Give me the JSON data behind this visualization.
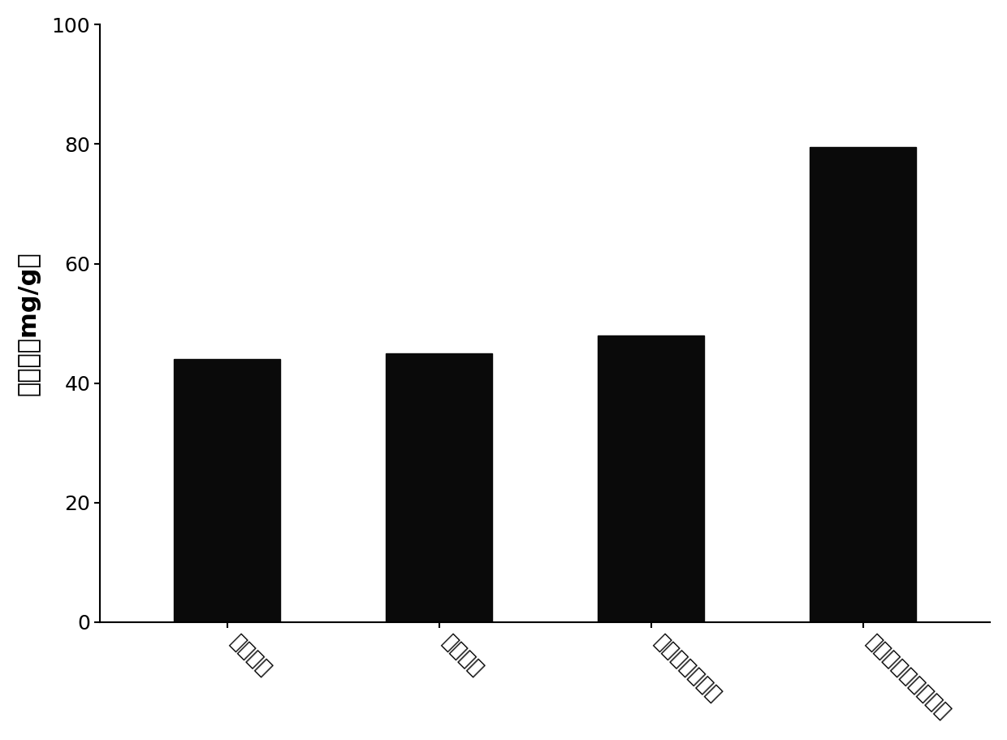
{
  "categories": [
    "磺胺吡啶",
    "磺胺嘧啶",
    "磺胺二甲基嘧啶",
    "磺胺甲基（异）恶唑"
  ],
  "values": [
    44.0,
    45.0,
    48.0,
    79.5
  ],
  "bar_color": "#0a0a0a",
  "ylabel": "吸附量（mg/g）",
  "ylim": [
    0,
    100
  ],
  "yticks": [
    0,
    20,
    40,
    60,
    80,
    100
  ],
  "background_color": "#ffffff",
  "bar_width": 0.5,
  "ylabel_fontsize": 22,
  "tick_fontsize": 18,
  "xlabel_rotation": -45
}
